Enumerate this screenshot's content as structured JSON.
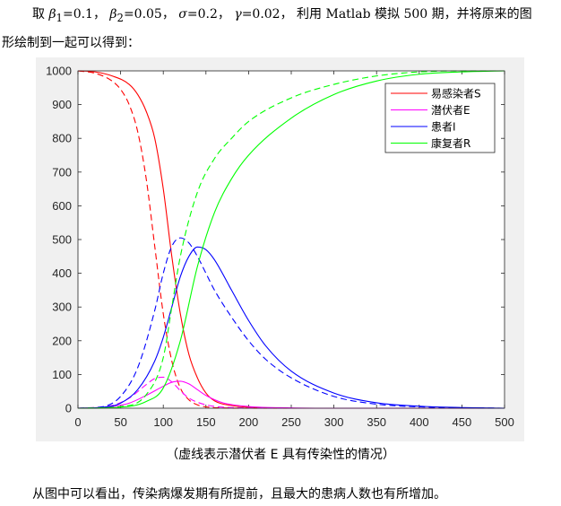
{
  "intro": {
    "prefix": "取",
    "beta1_sym": "β",
    "beta1_sub": "1",
    "beta1_val": "=0.1，",
    "beta2_sym": "β",
    "beta2_sub": "2",
    "beta2_val": "=0.05，",
    "sigma_sym": "σ",
    "sigma_val": "=0.2，",
    "gamma_sym": "γ",
    "gamma_val": "=0.02，",
    "rest_line1": "利用 Matlab 模拟 500 期，并将原来的图",
    "line2": "形绘制到一起可以得到："
  },
  "caption": "（虚线表示潜伏者 E 具有传染性的情况）",
  "conclusion": "从图中可以看出，传染病爆发期有所提前，且最大的患病人数也有所增加。",
  "chart_data": {
    "type": "line",
    "xlim": [
      0,
      500
    ],
    "ylim": [
      0,
      1000
    ],
    "xticks": [
      "0",
      "50",
      "100",
      "150",
      "200",
      "250",
      "300",
      "350",
      "400",
      "450",
      "500"
    ],
    "yticks": [
      "0",
      "100",
      "200",
      "300",
      "400",
      "500",
      "600",
      "700",
      "800",
      "900",
      "1000"
    ],
    "legend_position": "top-right",
    "legend": [
      {
        "label": "易感染者S",
        "color": "#ff0000"
      },
      {
        "label": "潜伏者E",
        "color": "#ff00ff"
      },
      {
        "label": "患者I",
        "color": "#0000ff"
      },
      {
        "label": "康复者R",
        "color": "#00ff00"
      }
    ],
    "series": [
      {
        "name": "易感染者S",
        "color": "#ff0000",
        "style": "solid",
        "x": [
          0,
          20,
          40,
          60,
          70,
          80,
          90,
          100,
          110,
          120,
          130,
          140,
          150,
          160,
          180,
          200,
          250,
          300,
          500
        ],
        "y": [
          1000,
          997,
          985,
          960,
          930,
          880,
          800,
          650,
          450,
          280,
          160,
          90,
          45,
          22,
          8,
          3,
          0,
          0,
          0
        ]
      },
      {
        "name": "易感染者S",
        "color": "#ff0000",
        "style": "dashed",
        "x": [
          0,
          20,
          40,
          50,
          60,
          70,
          80,
          90,
          100,
          110,
          120,
          130,
          140,
          150,
          170,
          200,
          500
        ],
        "y": [
          1000,
          993,
          970,
          945,
          900,
          820,
          680,
          480,
          280,
          140,
          60,
          25,
          10,
          4,
          1,
          0,
          0
        ]
      },
      {
        "name": "潜伏者E",
        "color": "#ff00ff",
        "style": "solid",
        "x": [
          0,
          40,
          60,
          80,
          100,
          110,
          120,
          130,
          140,
          150,
          170,
          200,
          250,
          300,
          500
        ],
        "y": [
          0,
          5,
          15,
          38,
          65,
          77,
          80,
          72,
          55,
          38,
          16,
          5,
          1,
          0,
          0
        ]
      },
      {
        "name": "潜伏者E",
        "color": "#ff00ff",
        "style": "dashed",
        "x": [
          0,
          40,
          60,
          80,
          90,
          100,
          110,
          120,
          130,
          150,
          180,
          250,
          500
        ],
        "y": [
          0,
          8,
          30,
          70,
          88,
          92,
          78,
          52,
          30,
          10,
          2,
          0,
          0
        ]
      },
      {
        "name": "患者I",
        "color": "#0000ff",
        "style": "solid",
        "x": [
          0,
          30,
          50,
          70,
          90,
          100,
          110,
          120,
          130,
          140,
          150,
          160,
          180,
          200,
          220,
          250,
          300,
          350,
          400,
          450,
          500
        ],
        "y": [
          0,
          3,
          15,
          55,
          140,
          210,
          300,
          390,
          450,
          478,
          470,
          440,
          350,
          260,
          185,
          110,
          45,
          16,
          6,
          2,
          0
        ]
      },
      {
        "name": "患者I",
        "color": "#0000ff",
        "style": "dashed",
        "x": [
          0,
          30,
          50,
          70,
          90,
          100,
          110,
          120,
          130,
          140,
          150,
          160,
          180,
          200,
          220,
          250,
          300,
          350,
          400,
          500
        ],
        "y": [
          0,
          5,
          35,
          120,
          290,
          400,
          480,
          505,
          490,
          450,
          400,
          350,
          270,
          200,
          145,
          90,
          35,
          12,
          4,
          0
        ]
      },
      {
        "name": "康复者R",
        "color": "#00ff00",
        "style": "solid",
        "x": [
          0,
          50,
          80,
          100,
          120,
          140,
          160,
          180,
          200,
          250,
          300,
          350,
          400,
          450,
          500
        ],
        "y": [
          0,
          3,
          20,
          60,
          200,
          420,
          580,
          680,
          750,
          860,
          930,
          970,
          990,
          997,
          1000
        ],
        "segments": "pchip"
      },
      {
        "name": "康复者R",
        "color": "#00ff00",
        "style": "dashed",
        "x": [
          0,
          50,
          80,
          100,
          110,
          120,
          140,
          160,
          180,
          200,
          250,
          300,
          350,
          400,
          450,
          500
        ],
        "y": [
          0,
          5,
          40,
          150,
          300,
          450,
          640,
          740,
          800,
          850,
          920,
          960,
          985,
          997,
          1000,
          1000
        ]
      }
    ]
  }
}
